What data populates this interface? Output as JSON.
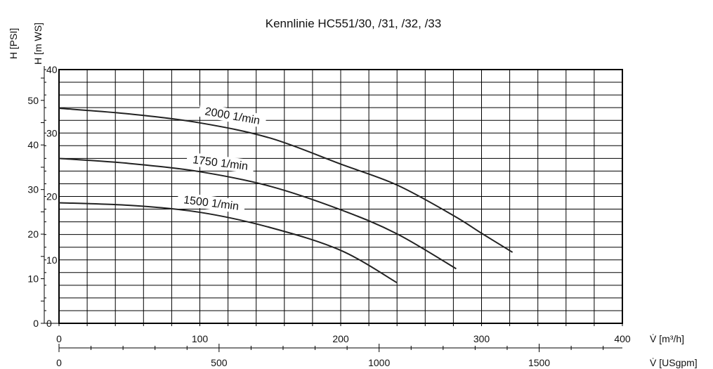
{
  "chart_data": {
    "type": "line",
    "title": "Kennlinie HC551/30, /31, /32, /33",
    "xlabel": "V̇ [m³/h]",
    "xlabel2": "V̇ [USgpm]",
    "ylabel": "H [m WS]",
    "ylabel2": "H [PSI]",
    "xlim": [
      0,
      400
    ],
    "ylim": [
      0,
      40
    ],
    "x_ticks": [
      0,
      100,
      200,
      300,
      400
    ],
    "x_tick_labels": [
      "0",
      "100",
      "200",
      "300",
      "400"
    ],
    "x2_lim": [
      0,
      1760
    ],
    "x2_ticks": [
      0,
      500,
      1000,
      1500
    ],
    "x2_tick_labels": [
      "0",
      "500",
      "1000",
      "1500"
    ],
    "y_ticks": [
      0,
      10,
      20,
      30,
      40
    ],
    "y_tick_labels": [
      "0",
      "10",
      "20",
      "30",
      "40"
    ],
    "y2_lim": [
      0,
      56.9
    ],
    "y2_ticks": [
      0,
      10,
      20,
      30,
      40,
      50
    ],
    "y2_tick_labels": [
      "0",
      "10",
      "20",
      "30",
      "40",
      "50"
    ],
    "grid": true,
    "series": [
      {
        "name": "2000 1/min",
        "x": [
          0,
          50,
          100,
          150,
          200,
          240,
          280,
          300,
          322
        ],
        "y": [
          33.9,
          33.0,
          31.6,
          29.2,
          25.1,
          21.8,
          17.0,
          14.2,
          11.2
        ]
      },
      {
        "name": "1750 1/min",
        "x": [
          0,
          50,
          100,
          150,
          200,
          240,
          282
        ],
        "y": [
          26.0,
          25.2,
          23.9,
          21.6,
          17.9,
          14.1,
          8.6
        ]
      },
      {
        "name": "1500 1/min",
        "x": [
          0,
          50,
          100,
          150,
          200,
          240
        ],
        "y": [
          19.0,
          18.6,
          17.5,
          15.1,
          11.5,
          6.4
        ]
      }
    ]
  }
}
